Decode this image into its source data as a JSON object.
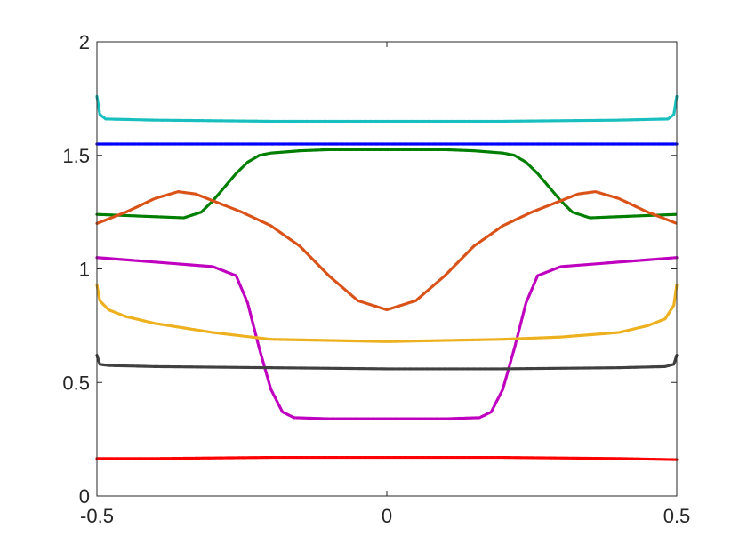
{
  "chart_data": {
    "type": "line",
    "title": "",
    "xlabel": "",
    "ylabel": "",
    "xlim": [
      -0.5,
      0.5
    ],
    "ylim": [
      0,
      2
    ],
    "x_ticks": [
      -0.5,
      0,
      0.5
    ],
    "x_tick_labels": [
      "-0.5",
      "0",
      "0.5"
    ],
    "y_ticks": [
      0,
      0.5,
      1,
      1.5,
      2
    ],
    "y_tick_labels": [
      "0",
      "0.5",
      "1",
      "1.5",
      "2"
    ],
    "grid": false,
    "legend": "none",
    "series": [
      {
        "color": "#19BFBF",
        "x": [
          -0.5,
          -0.495,
          -0.485,
          -0.4,
          -0.2,
          0,
          0.2,
          0.4,
          0.485,
          0.495,
          0.5
        ],
        "y": [
          1.76,
          1.68,
          1.66,
          1.655,
          1.65,
          1.65,
          1.65,
          1.655,
          1.66,
          1.68,
          1.76
        ]
      },
      {
        "color": "#0000FF",
        "x": [
          -0.5,
          -0.4,
          -0.2,
          0,
          0.2,
          0.4,
          0.5
        ],
        "y": [
          1.55,
          1.55,
          1.55,
          1.55,
          1.55,
          1.55,
          1.55
        ]
      },
      {
        "color": "#007F00",
        "x": [
          -0.5,
          -0.45,
          -0.4,
          -0.35,
          -0.32,
          -0.3,
          -0.28,
          -0.26,
          -0.24,
          -0.22,
          -0.2,
          -0.15,
          -0.1,
          -0.05,
          0,
          0.05,
          0.1,
          0.15,
          0.2,
          0.22,
          0.24,
          0.26,
          0.28,
          0.3,
          0.32,
          0.35,
          0.4,
          0.45,
          0.5
        ],
        "y": [
          1.24,
          1.235,
          1.23,
          1.225,
          1.25,
          1.3,
          1.36,
          1.42,
          1.47,
          1.5,
          1.51,
          1.52,
          1.525,
          1.525,
          1.525,
          1.525,
          1.525,
          1.52,
          1.51,
          1.5,
          1.47,
          1.42,
          1.36,
          1.3,
          1.25,
          1.225,
          1.23,
          1.235,
          1.24
        ]
      },
      {
        "color": "#D95319",
        "x": [
          -0.5,
          -0.45,
          -0.4,
          -0.36,
          -0.33,
          -0.3,
          -0.25,
          -0.2,
          -0.15,
          -0.1,
          -0.05,
          0,
          0.05,
          0.1,
          0.15,
          0.2,
          0.25,
          0.3,
          0.33,
          0.36,
          0.4,
          0.45,
          0.5
        ],
        "y": [
          1.2,
          1.25,
          1.31,
          1.34,
          1.33,
          1.3,
          1.25,
          1.19,
          1.1,
          0.97,
          0.86,
          0.82,
          0.86,
          0.97,
          1.1,
          1.19,
          1.25,
          1.3,
          1.33,
          1.34,
          1.31,
          1.25,
          1.2
        ]
      },
      {
        "color": "#BF00BF",
        "x": [
          -0.5,
          -0.4,
          -0.3,
          -0.26,
          -0.24,
          -0.22,
          -0.2,
          -0.18,
          -0.16,
          -0.1,
          0,
          0.1,
          0.16,
          0.18,
          0.2,
          0.22,
          0.24,
          0.26,
          0.3,
          0.4,
          0.5
        ],
        "y": [
          1.05,
          1.03,
          1.01,
          0.97,
          0.85,
          0.65,
          0.47,
          0.37,
          0.345,
          0.34,
          0.34,
          0.34,
          0.345,
          0.37,
          0.47,
          0.65,
          0.85,
          0.97,
          1.01,
          1.03,
          1.05
        ]
      },
      {
        "color": "#EDB120",
        "x": [
          -0.5,
          -0.495,
          -0.48,
          -0.45,
          -0.4,
          -0.3,
          -0.2,
          -0.1,
          0,
          0.1,
          0.2,
          0.3,
          0.4,
          0.45,
          0.48,
          0.495,
          0.5
        ],
        "y": [
          0.93,
          0.86,
          0.82,
          0.79,
          0.76,
          0.72,
          0.69,
          0.685,
          0.68,
          0.685,
          0.69,
          0.7,
          0.72,
          0.75,
          0.78,
          0.84,
          0.93
        ]
      },
      {
        "color": "#404040",
        "x": [
          -0.5,
          -0.495,
          -0.48,
          -0.4,
          -0.2,
          0,
          0.2,
          0.4,
          0.48,
          0.495,
          0.5
        ],
        "y": [
          0.62,
          0.58,
          0.575,
          0.57,
          0.565,
          0.56,
          0.56,
          0.565,
          0.57,
          0.58,
          0.62
        ]
      },
      {
        "color": "#FF0000",
        "x": [
          -0.5,
          -0.4,
          -0.2,
          0,
          0.2,
          0.4,
          0.5
        ],
        "y": [
          0.165,
          0.165,
          0.17,
          0.17,
          0.17,
          0.165,
          0.16
        ]
      }
    ]
  }
}
